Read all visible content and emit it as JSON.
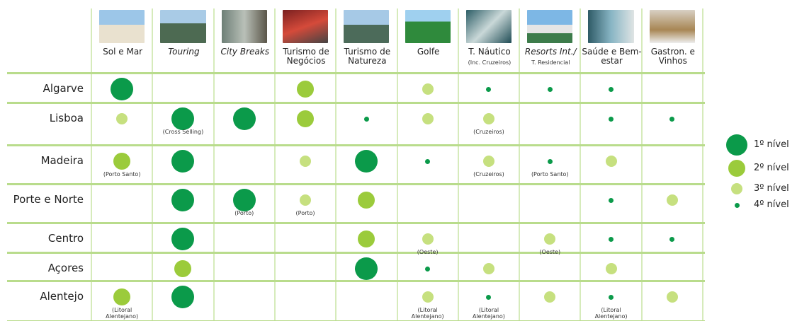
{
  "columns": [
    {
      "label": "Sol e Mar"
    },
    {
      "label": "Touring"
    },
    {
      "label": "City Breaks"
    },
    {
      "label": "Turismo de Negócios"
    },
    {
      "label": "Turismo de Natureza"
    },
    {
      "label": "Golfe"
    },
    {
      "label": "T. Náutico",
      "sublabel": "(Inc. Cruzeiros)"
    },
    {
      "label": "Resorts Int./",
      "sublabel": "T. Residencial"
    },
    {
      "label": "Saúde e Bem-estar"
    },
    {
      "label": "Gastron. e Vinhos"
    }
  ],
  "rows": [
    {
      "name": "Algarve",
      "cells": [
        {
          "level": 1
        },
        null,
        null,
        {
          "level": 2
        },
        null,
        {
          "level": 3
        },
        {
          "level": 4
        },
        {
          "level": 4
        },
        {
          "level": 4
        },
        null
      ]
    },
    {
      "name": "Lisboa",
      "cells": [
        {
          "level": 3
        },
        {
          "level": 1,
          "note": "(Cross Selling)"
        },
        {
          "level": 1
        },
        {
          "level": 2
        },
        {
          "level": 4
        },
        {
          "level": 3
        },
        {
          "level": 3,
          "note": "(Cruzeiros)"
        },
        null,
        {
          "level": 4
        },
        {
          "level": 4
        }
      ]
    },
    {
      "name": "Madeira",
      "cells": [
        {
          "level": 2,
          "note": "(Porto Santo)"
        },
        {
          "level": 1
        },
        null,
        {
          "level": 3
        },
        {
          "level": 1
        },
        {
          "level": 4
        },
        {
          "level": 3,
          "note": "(Cruzeiros)"
        },
        {
          "level": 4,
          "note": "(Porto Santo)"
        },
        {
          "level": 3
        },
        null
      ]
    },
    {
      "name": "Porte e Norte",
      "cells": [
        null,
        {
          "level": 1
        },
        {
          "level": 1,
          "note": "(Porto)"
        },
        {
          "level": 3,
          "note": "(Porto)"
        },
        {
          "level": 2
        },
        null,
        null,
        null,
        {
          "level": 4
        },
        {
          "level": 3
        }
      ]
    },
    {
      "name": "Centro",
      "cells": [
        null,
        {
          "level": 1
        },
        null,
        null,
        {
          "level": 2
        },
        {
          "level": 3,
          "note": "(Oeste)"
        },
        null,
        {
          "level": 3,
          "note": "(Oeste)"
        },
        {
          "level": 4
        },
        {
          "level": 4
        }
      ]
    },
    {
      "name": "Açores",
      "cells": [
        null,
        {
          "level": 2
        },
        null,
        null,
        {
          "level": 1
        },
        {
          "level": 4
        },
        {
          "level": 3
        },
        null,
        {
          "level": 3
        },
        null
      ]
    },
    {
      "name": "Alentejo",
      "cells": [
        {
          "level": 2,
          "note": "(Litoral Alentejano)"
        },
        {
          "level": 1
        },
        null,
        null,
        null,
        {
          "level": 3,
          "note": "(Litoral Alentejano)"
        },
        {
          "level": 4,
          "note": "(Litoral Alentejano)"
        },
        {
          "level": 3
        },
        {
          "level": 4,
          "note": "(Litoral Alentejano)"
        },
        {
          "level": 3
        }
      ]
    }
  ],
  "legend": [
    {
      "level": 1,
      "label": "1º nível"
    },
    {
      "level": 2,
      "label": "2º nível"
    },
    {
      "level": 3,
      "label": "3º nível"
    },
    {
      "level": 4,
      "label": "4º nível"
    }
  ]
}
